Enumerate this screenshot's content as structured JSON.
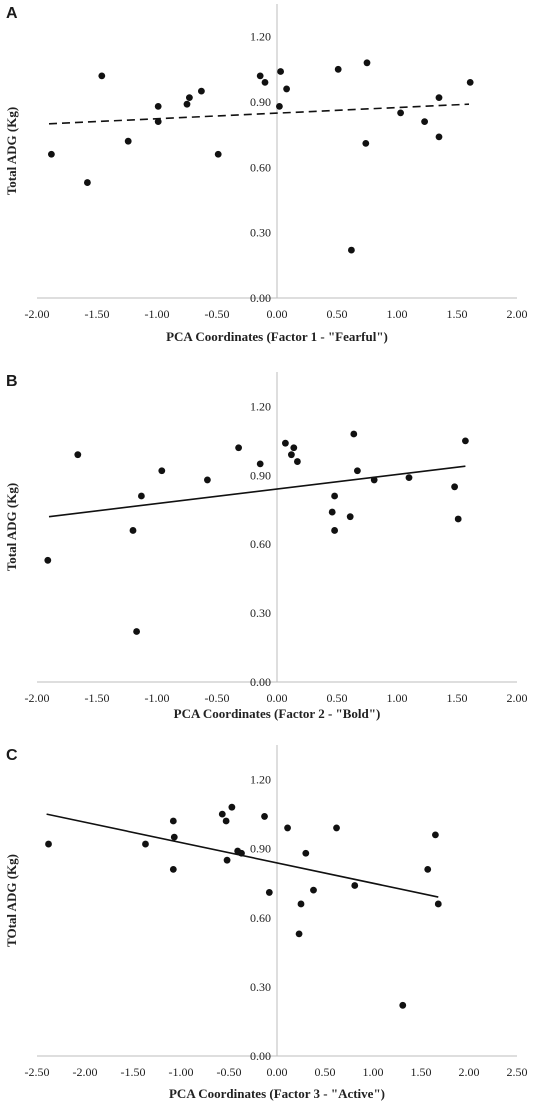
{
  "chart_data": [
    {
      "type": "scatter",
      "panel_label": "A",
      "xlabel": "PCA Coordinates (Factor 1 - \"Fearful\")",
      "ylabel": "Total ADG (Kg)",
      "xlim": [
        -2.0,
        2.0
      ],
      "ylim": [
        0.0,
        1.35
      ],
      "x_ticks": [
        "-2.00",
        "-1.50",
        "-1.00",
        "-0.50",
        "0.00",
        "0.50",
        "1.00",
        "1.50",
        "2.00"
      ],
      "y_ticks": [
        "0.00",
        "0.30",
        "0.60",
        "0.90",
        "1.20"
      ],
      "grid": false,
      "trendline": {
        "style": "dashed",
        "x": [
          -1.9,
          1.6
        ],
        "y": [
          0.8,
          0.89
        ]
      },
      "series": [
        {
          "points": [
            [
              -1.88,
              0.66
            ],
            [
              -1.58,
              0.53
            ],
            [
              -1.46,
              1.02
            ],
            [
              -1.24,
              0.72
            ],
            [
              -0.99,
              0.88
            ],
            [
              -0.99,
              0.81
            ],
            [
              -0.75,
              0.89
            ],
            [
              -0.73,
              0.92
            ],
            [
              -0.63,
              0.95
            ],
            [
              -0.49,
              0.66
            ],
            [
              -0.14,
              1.02
            ],
            [
              -0.1,
              0.99
            ],
            [
              0.02,
              0.88
            ],
            [
              0.03,
              1.04
            ],
            [
              0.08,
              0.96
            ],
            [
              0.51,
              1.05
            ],
            [
              0.62,
              0.22
            ],
            [
              0.74,
              0.71
            ],
            [
              0.75,
              1.08
            ],
            [
              1.03,
              0.85
            ],
            [
              1.23,
              0.81
            ],
            [
              1.35,
              0.92
            ],
            [
              1.35,
              0.74
            ],
            [
              1.61,
              0.99
            ]
          ]
        }
      ]
    },
    {
      "type": "scatter",
      "panel_label": "B",
      "xlabel": "PCA Coordinates (Factor 2 - \"Bold\")",
      "ylabel": "Total ADG (Kg)",
      "xlim": [
        -2.0,
        2.0
      ],
      "ylim": [
        0.0,
        1.35
      ],
      "x_ticks": [
        "-2.00",
        "-1.50",
        "-1.00",
        "-0.50",
        "0.00",
        "0.50",
        "1.00",
        "1.50",
        "2.00"
      ],
      "y_ticks": [
        "0.00",
        "0.30",
        "0.60",
        "0.90",
        "1.20"
      ],
      "grid": false,
      "trendline": {
        "style": "solid",
        "x": [
          -1.9,
          1.57
        ],
        "y": [
          0.72,
          0.94
        ]
      },
      "series": [
        {
          "points": [
            [
              -1.91,
              0.53
            ],
            [
              -1.66,
              0.99
            ],
            [
              -1.13,
              0.81
            ],
            [
              -1.2,
              0.66
            ],
            [
              -1.17,
              0.22
            ],
            [
              -0.96,
              0.92
            ],
            [
              -0.58,
              0.88
            ],
            [
              -0.32,
              1.02
            ],
            [
              -0.14,
              0.95
            ],
            [
              0.07,
              1.04
            ],
            [
              0.12,
              0.99
            ],
            [
              0.14,
              1.02
            ],
            [
              0.17,
              0.96
            ],
            [
              0.46,
              0.74
            ],
            [
              0.48,
              0.81
            ],
            [
              0.48,
              0.66
            ],
            [
              0.61,
              0.72
            ],
            [
              0.64,
              1.08
            ],
            [
              0.67,
              0.92
            ],
            [
              0.81,
              0.88
            ],
            [
              1.1,
              0.89
            ],
            [
              1.48,
              0.85
            ],
            [
              1.51,
              0.71
            ],
            [
              1.57,
              1.05
            ]
          ]
        }
      ]
    },
    {
      "type": "scatter",
      "panel_label": "C",
      "xlabel": "PCA Coordinates (Factor 3 - \"Active\")",
      "ylabel": "TOtal ADG (Kg)",
      "xlim": [
        -2.5,
        2.5
      ],
      "ylim": [
        0.0,
        1.35
      ],
      "x_ticks": [
        "-2.50",
        "-2.00",
        "-1.50",
        "-1.00",
        "-0.50",
        "0.00",
        "0.50",
        "1.00",
        "1.50",
        "2.00",
        "2.50"
      ],
      "y_ticks": [
        "0.00",
        "0.30",
        "0.60",
        "0.90",
        "1.20"
      ],
      "grid": false,
      "trendline": {
        "style": "solid",
        "x": [
          -2.4,
          1.68
        ],
        "y": [
          1.05,
          0.69
        ]
      },
      "series": [
        {
          "points": [
            [
              -2.38,
              0.92
            ],
            [
              -1.37,
              0.92
            ],
            [
              -1.08,
              1.02
            ],
            [
              -1.07,
              0.95
            ],
            [
              -1.08,
              0.81
            ],
            [
              -0.57,
              1.05
            ],
            [
              -0.53,
              1.02
            ],
            [
              -0.52,
              0.85
            ],
            [
              -0.47,
              1.08
            ],
            [
              -0.41,
              0.89
            ],
            [
              -0.37,
              0.88
            ],
            [
              -0.13,
              1.04
            ],
            [
              -0.08,
              0.71
            ],
            [
              0.11,
              0.99
            ],
            [
              0.23,
              0.53
            ],
            [
              0.25,
              0.66
            ],
            [
              0.3,
              0.88
            ],
            [
              0.38,
              0.72
            ],
            [
              0.62,
              0.99
            ],
            [
              0.81,
              0.74
            ],
            [
              1.31,
              0.22
            ],
            [
              1.57,
              0.81
            ],
            [
              1.65,
              0.96
            ],
            [
              1.68,
              0.66
            ]
          ]
        }
      ]
    }
  ]
}
